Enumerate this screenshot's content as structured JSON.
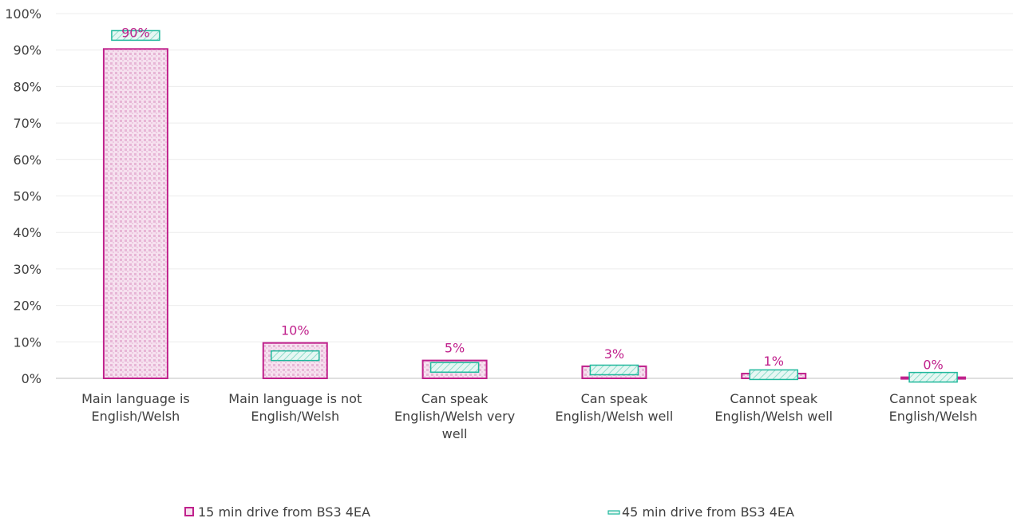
{
  "chart_data": {
    "type": "bar",
    "categories": [
      [
        "Main language is",
        "English/Welsh"
      ],
      [
        "Main language is not",
        "English/Welsh"
      ],
      [
        "Can speak",
        "English/Welsh very",
        "well"
      ],
      [
        "Can speak",
        "English/Welsh well"
      ],
      [
        "Cannot speak",
        "English/Welsh well"
      ],
      [
        "Cannot speak",
        "English/Welsh"
      ]
    ],
    "series": [
      {
        "name": "15 min drive from BS3 4EA",
        "values": [
          90.3,
          9.7,
          4.9,
          3.3,
          1.3,
          0.3
        ],
        "data_labels": [
          "90%",
          "10%",
          "5%",
          "3%",
          "1%",
          "0%"
        ],
        "color": "#c0218c",
        "fill": "#f6e1ef"
      },
      {
        "name": "45 min drive from BS3 4EA",
        "values": [
          94.0,
          6.2,
          3.0,
          2.3,
          1.0,
          0.3
        ],
        "color": "#1fb89c",
        "fill": "#dff5f0"
      }
    ],
    "title": "",
    "xlabel": "",
    "ylabel": "",
    "ylim": [
      0,
      100
    ],
    "yticks": [
      "0%",
      "10%",
      "20%",
      "30%",
      "40%",
      "50%",
      "60%",
      "70%",
      "80%",
      "90%",
      "100%"
    ],
    "grid": true,
    "legend_position": "bottom"
  }
}
